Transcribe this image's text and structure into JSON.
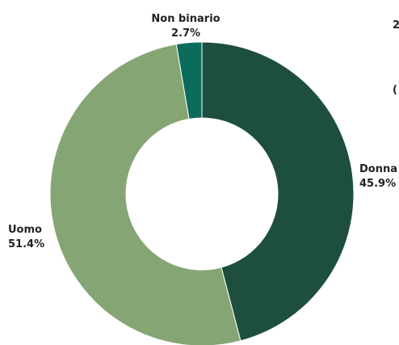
{
  "chart_data": {
    "type": "pie",
    "donut": true,
    "slices": [
      {
        "label": "Donna",
        "value": 45.9,
        "value_label": "45.9%",
        "color": "#1d4e3f"
      },
      {
        "label": "Uomo",
        "value": 51.4,
        "value_label": "51.4%",
        "color": "#86a575"
      },
      {
        "label": "Non binario",
        "value": 2.7,
        "value_label": "2.7%",
        "color": "#0b6b5c"
      }
    ],
    "legend": "none"
  },
  "page": {
    "clipped_right_glyphs": [
      "2",
      "("
    ]
  }
}
